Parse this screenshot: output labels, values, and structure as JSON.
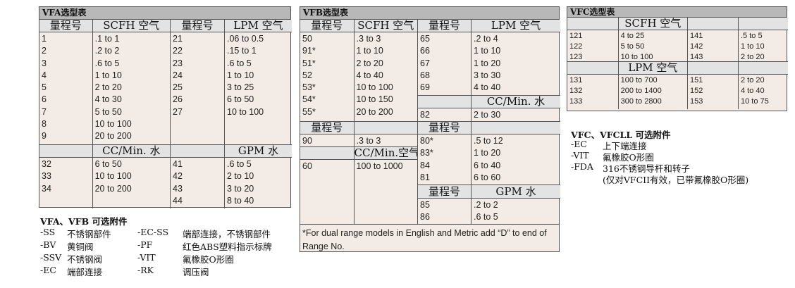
{
  "colors": {
    "title_bar": "#b8b8b8",
    "header_row": "#e3e3e3",
    "data_bg": "#f3ebe6",
    "border": "#555555"
  },
  "tables": [
    {
      "title": "VFA选型表",
      "halves": [
        {
          "sections": [
            {
              "type": "header",
              "cells": [
                "量程号",
                "SCFH 空气"
              ]
            },
            {
              "type": "rows",
              "rows": [
                [
                  "1",
                  ".1 to 1"
                ],
                [
                  "2",
                  ".2 to 2"
                ],
                [
                  "3",
                  ".6 to 5"
                ],
                [
                  "4",
                  "1 to 10"
                ],
                [
                  "5",
                  "2 to 20"
                ],
                [
                  "6",
                  "4 to 30"
                ],
                [
                  "7",
                  "5 to 50"
                ],
                [
                  "8",
                  "10 to 100"
                ],
                [
                  "9",
                  "20 to 200"
                ]
              ]
            },
            {
              "type": "header",
              "cells": [
                "",
                "CC/Min. 水"
              ]
            },
            {
              "type": "rows",
              "rows": [
                [
                  "32",
                  "6 to 50"
                ],
                [
                  "33",
                  "10 to 100"
                ],
                [
                  "34",
                  "20 to 200"
                ]
              ]
            }
          ]
        },
        {
          "sections": [
            {
              "type": "header",
              "cells": [
                "量程号",
                "LPM 空气"
              ]
            },
            {
              "type": "rows",
              "rows": [
                [
                  "21",
                  ".06 to 0.5"
                ],
                [
                  "22",
                  ".15 to 1"
                ],
                [
                  "23",
                  ".6 to 5"
                ],
                [
                  "24",
                  "1 to 10"
                ],
                [
                  "25",
                  "3 to 25"
                ],
                [
                  "26",
                  "6 to 50"
                ],
                [
                  "27",
                  "10 to 100"
                ]
              ]
            },
            {
              "type": "header",
              "cells": [
                "",
                "GPM 水"
              ]
            },
            {
              "type": "rows",
              "rows": [
                [
                  "41",
                  ".6 to 5"
                ],
                [
                  "42",
                  "2 to 10"
                ],
                [
                  "43",
                  "3 to 20"
                ],
                [
                  "44",
                  "8 to 40"
                ]
              ]
            }
          ]
        }
      ]
    },
    {
      "title": "VFB选型表",
      "halves": [
        {
          "sections": [
            {
              "type": "header",
              "cells": [
                "量程号",
                "SCFH 空气"
              ]
            },
            {
              "type": "rows",
              "rows": [
                [
                  "50",
                  ".3 to 3"
                ],
                [
                  "91*",
                  "1 to 10"
                ],
                [
                  "51*",
                  "2 to 20"
                ],
                [
                  "52",
                  "4 to 40"
                ],
                [
                  "53*",
                  "10 to 100"
                ],
                [
                  "54*",
                  "10 to 150"
                ],
                [
                  "55*",
                  "20 to 200"
                ]
              ]
            },
            {
              "type": "header",
              "cells": [
                "量程号",
                ""
              ]
            },
            {
              "type": "rows",
              "rows": [
                [
                  "90",
                  ".3 to 3"
                ]
              ]
            },
            {
              "type": "header",
              "cells": [
                "",
                "CC/Min.空气"
              ]
            },
            {
              "type": "rows",
              "rows": [
                [
                  "60",
                  "100 to 1000"
                ]
              ]
            }
          ]
        },
        {
          "sections": [
            {
              "type": "header",
              "cells": [
                "量程号",
                "LPM 空气"
              ]
            },
            {
              "type": "rows",
              "rows": [
                [
                  "65",
                  ".2 to 4"
                ],
                [
                  "66",
                  "1 to 10"
                ],
                [
                  "67",
                  "1 to 20"
                ],
                [
                  "68",
                  "3 to 30"
                ],
                [
                  "69",
                  "4 to 40"
                ]
              ]
            },
            {
              "type": "header",
              "cells": [
                "",
                "CC/Min. 水"
              ]
            },
            {
              "type": "rows",
              "rows": [
                [
                  "82",
                  "2 to 30"
                ]
              ]
            },
            {
              "type": "header",
              "cells": [
                "量程号",
                ""
              ]
            },
            {
              "type": "rows",
              "rows": [
                [
                  "80*",
                  ".5 to 12"
                ],
                [
                  "83*",
                  "1 to 20"
                ],
                [
                  "84",
                  "6 to 40"
                ],
                [
                  "81",
                  "6 to 60"
                ]
              ]
            },
            {
              "type": "header",
              "cells": [
                "量程号",
                "GPM 水"
              ]
            },
            {
              "type": "rows",
              "rows": [
                [
                  "85",
                  ".2 to 2"
                ],
                [
                  "86",
                  ".6 to 5"
                ]
              ]
            }
          ]
        }
      ],
      "footnote": "*For dual range models in English and Metric add “D” to end of Range No."
    },
    {
      "title": "VFC选型表",
      "halves": [
        {
          "sections": [
            {
              "type": "header",
              "cells": [
                "",
                "SCFH 空气"
              ]
            },
            {
              "type": "rows",
              "rows": [
                [
                  "121",
                  "4 to 25"
                ],
                [
                  "122",
                  "5 to 50"
                ],
                [
                  "123",
                  "10 to 100"
                ]
              ]
            },
            {
              "type": "header",
              "cells": [
                "",
                "LPM 空气"
              ]
            },
            {
              "type": "rows",
              "rows": [
                [
                  "131",
                  "100 to 700"
                ],
                [
                  "132",
                  "200 to 1400"
                ],
                [
                  "133",
                  "300 to 2800"
                ]
              ]
            }
          ]
        },
        {
          "sections": [
            {
              "type": "header",
              "cells": [
                "",
                ""
              ]
            },
            {
              "type": "rows",
              "rows": [
                [
                  "141",
                  ".5 to 5"
                ],
                [
                  "142",
                  "1 to 10"
                ],
                [
                  "143",
                  "2 to 20"
                ]
              ]
            },
            {
              "type": "header",
              "cells": [
                "",
                ""
              ]
            },
            {
              "type": "rows",
              "rows": [
                [
                  "151",
                  "2 to 20"
                ],
                [
                  "152",
                  "4 to 40"
                ],
                [
                  "153",
                  "10 to 75"
                ]
              ]
            }
          ]
        }
      ]
    }
  ],
  "accessories_vfa_vfb": {
    "title": "VFA、VFB 可选附件",
    "items": [
      [
        "-SS",
        "不锈钢部件",
        "-EC-SS",
        "端部连接，不锈钢部件"
      ],
      [
        "-BV",
        "黄铜阀",
        "-PF",
        "红色ABS塑料指示标牌"
      ],
      [
        "-SSV",
        "不锈钢阀",
        "-VIT",
        "氟橡胶O形圈"
      ],
      [
        "-EC",
        "端部连接",
        "-RK",
        "调压阀"
      ]
    ]
  },
  "accessories_vfc": {
    "title": "VFC、VFCLL 可选附件",
    "items": [
      [
        "-EC",
        "上下端连接"
      ],
      [
        "-VIT",
        "氟橡胶O形圈"
      ],
      [
        "-FDA",
        "316不锈钢导杆和转子"
      ],
      [
        "",
        "(仅对VFCII有效，已带氟橡胶O形圈)"
      ]
    ]
  }
}
